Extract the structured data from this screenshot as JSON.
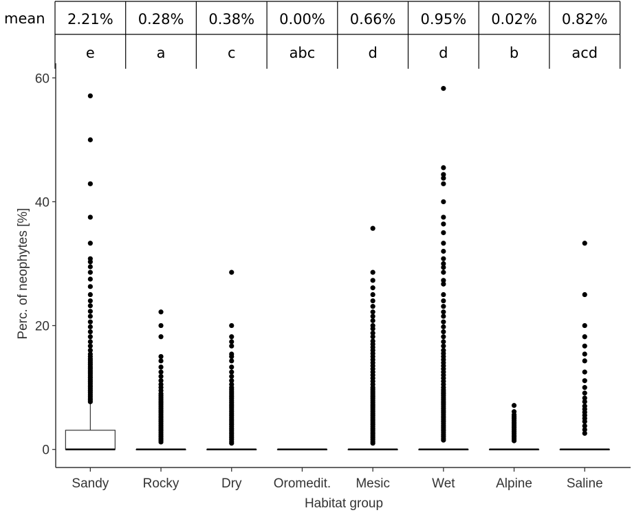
{
  "chart_data": {
    "type": "boxplot",
    "xlabel": "Habitat group",
    "ylabel": "Perc. of neophytes [%]",
    "ylim": [
      -3,
      63
    ],
    "yticks": [
      0,
      20,
      40,
      60
    ],
    "grid": false,
    "categories": [
      "Sandy",
      "Rocky",
      "Dry",
      "Oromedit.",
      "Mesic",
      "Wet",
      "Alpine",
      "Saline"
    ],
    "header_rows": [
      {
        "label": "mean",
        "values": [
          "2.21%",
          "0.28%",
          "0.38%",
          "0.00%",
          "0.66%",
          "0.95%",
          "0.02%",
          "0.82%"
        ]
      },
      {
        "label": "",
        "values": [
          "e",
          "a",
          "c",
          "abc",
          "d",
          "d",
          "b",
          "acd"
        ]
      }
    ],
    "boxes": [
      {
        "category": "Sandy",
        "q1": 0,
        "median": 0,
        "q3": 3.1,
        "whisker_low": 0,
        "whisker_high": 7.7,
        "outliers": [
          7.7,
          8.0,
          8.3,
          8.6,
          8.9,
          9.2,
          9.5,
          9.8,
          10.1,
          10.4,
          10.7,
          11.0,
          11.3,
          11.6,
          11.9,
          12.2,
          12.5,
          12.8,
          13.1,
          13.4,
          13.7,
          14.0,
          14.3,
          14.6,
          15.0,
          15.4,
          16.0,
          16.7,
          17.4,
          18.2,
          19.0,
          19.8,
          20.6,
          21.5,
          22.3,
          23.2,
          24.0,
          25.0,
          26.3,
          27.5,
          28.6,
          29.5,
          30.3,
          30.8,
          33.3,
          37.5,
          42.9,
          50.0,
          57.1
        ]
      },
      {
        "category": "Rocky",
        "q1": 0,
        "median": 0,
        "q3": 0,
        "whisker_low": 0,
        "whisker_high": 0,
        "outliers": [
          1.2,
          1.5,
          1.8,
          2.1,
          2.4,
          2.7,
          3.0,
          3.3,
          3.6,
          3.9,
          4.2,
          4.5,
          4.8,
          5.1,
          5.4,
          5.7,
          6.0,
          6.3,
          6.6,
          6.9,
          7.2,
          7.5,
          7.8,
          8.1,
          8.4,
          8.7,
          9.0,
          9.5,
          10.0,
          10.5,
          11.1,
          11.8,
          12.5,
          13.3,
          14.3,
          15.0,
          18.2,
          20.0,
          22.2
        ]
      },
      {
        "category": "Dry",
        "q1": 0,
        "median": 0,
        "q3": 0,
        "whisker_low": 0,
        "whisker_high": 0,
        "outliers": [
          1.0,
          1.3,
          1.6,
          1.9,
          2.2,
          2.5,
          2.8,
          3.1,
          3.4,
          3.7,
          4.0,
          4.3,
          4.6,
          4.9,
          5.2,
          5.5,
          5.8,
          6.1,
          6.4,
          6.7,
          7.0,
          7.3,
          7.6,
          7.9,
          8.2,
          8.5,
          8.8,
          9.1,
          9.4,
          9.7,
          10.0,
          10.5,
          11.1,
          11.8,
          12.5,
          13.3,
          14.3,
          15.0,
          15.4,
          16.7,
          17.4,
          18.2,
          20.0,
          28.6
        ]
      },
      {
        "category": "Oromedit.",
        "q1": 0,
        "median": 0,
        "q3": 0,
        "whisker_low": 0,
        "whisker_high": 0,
        "outliers": []
      },
      {
        "category": "Mesic",
        "q1": 0,
        "median": 0,
        "q3": 0,
        "whisker_low": 0,
        "whisker_high": 0,
        "outliers": [
          1.0,
          1.3,
          1.6,
          1.9,
          2.2,
          2.5,
          2.8,
          3.1,
          3.4,
          3.7,
          4.0,
          4.3,
          4.6,
          4.9,
          5.2,
          5.5,
          5.8,
          6.1,
          6.4,
          6.7,
          7.0,
          7.3,
          7.6,
          7.9,
          8.2,
          8.5,
          8.8,
          9.1,
          9.4,
          9.7,
          10.0,
          10.5,
          11.0,
          11.5,
          12.0,
          12.5,
          13.0,
          13.5,
          14.0,
          14.5,
          15.0,
          15.5,
          16.0,
          16.5,
          17.0,
          17.5,
          18.2,
          18.8,
          19.5,
          20.0,
          20.8,
          21.5,
          22.2,
          23.1,
          24.0,
          25.0,
          26.1,
          27.3,
          28.6,
          35.7
        ]
      },
      {
        "category": "Wet",
        "q1": 0,
        "median": 0,
        "q3": 0,
        "whisker_low": 0,
        "whisker_high": 0,
        "outliers": [
          1.5,
          1.8,
          2.1,
          2.4,
          2.7,
          3.0,
          3.3,
          3.6,
          3.9,
          4.2,
          4.5,
          4.8,
          5.1,
          5.4,
          5.7,
          6.0,
          6.3,
          6.6,
          6.9,
          7.2,
          7.5,
          7.8,
          8.1,
          8.4,
          8.7,
          9.0,
          9.3,
          9.6,
          10.0,
          10.5,
          11.0,
          11.5,
          12.0,
          12.5,
          13.0,
          13.5,
          14.0,
          14.5,
          15.0,
          15.5,
          16.0,
          16.7,
          17.4,
          18.2,
          19.0,
          19.8,
          20.6,
          21.5,
          22.2,
          23.1,
          24.0,
          25.0,
          26.7,
          27.3,
          28.6,
          29.4,
          30.0,
          30.8,
          32.0,
          33.3,
          35.0,
          36.4,
          37.5,
          40.0,
          42.9,
          43.8,
          44.4,
          45.5,
          58.3
        ]
      },
      {
        "category": "Alpine",
        "q1": 0,
        "median": 0,
        "q3": 0,
        "whisker_low": 0,
        "whisker_high": 0,
        "outliers": [
          1.4,
          1.7,
          2.0,
          2.3,
          2.6,
          2.9,
          3.2,
          3.5,
          3.8,
          4.1,
          4.4,
          4.7,
          5.0,
          5.3,
          5.6,
          6.1,
          7.1
        ]
      },
      {
        "category": "Saline",
        "q1": 0,
        "median": 0,
        "q3": 0,
        "whisker_low": 0,
        "whisker_high": 0,
        "outliers": [
          2.6,
          3.2,
          3.8,
          4.5,
          5.0,
          5.5,
          6.0,
          6.5,
          7.0,
          7.7,
          8.3,
          9.1,
          10.0,
          11.1,
          12.5,
          14.3,
          15.4,
          16.7,
          18.2,
          20.0,
          25.0,
          33.3
        ]
      }
    ]
  }
}
